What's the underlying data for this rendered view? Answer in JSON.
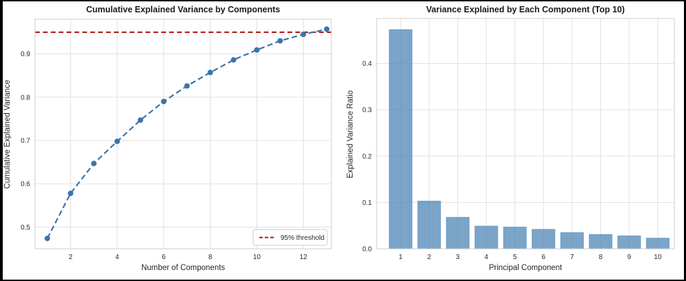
{
  "figure": {
    "background": "#ffffff",
    "frame_color": "#000000"
  },
  "style": {
    "grid_color": "#e0e0e0",
    "spine_color": "#cccccc",
    "text_color": "#262626",
    "title_color": "#1a1a1a"
  },
  "chart_data": [
    {
      "type": "line",
      "title": "Cumulative Explained Variance by Components",
      "xlabel": "Number of Components",
      "ylabel": "Cumulative Explained Variance",
      "x": [
        1,
        2,
        3,
        4,
        5,
        6,
        7,
        8,
        9,
        10,
        11,
        12,
        13
      ],
      "y": [
        0.474,
        0.578,
        0.647,
        0.698,
        0.747,
        0.79,
        0.826,
        0.857,
        0.886,
        0.909,
        0.93,
        0.945,
        0.957
      ],
      "line_color": "#3b74a9",
      "line_style": "dashed",
      "marker": "circle",
      "threshold": {
        "value": 0.95,
        "label": "95% threshold",
        "color": "#b01412",
        "style": "dashed"
      },
      "legend": {
        "position": "lower right",
        "entries": [
          "95% threshold"
        ]
      },
      "xlim": [
        0.47,
        13.2
      ],
      "ylim": [
        0.45,
        0.98
      ],
      "xticks": [
        2,
        4,
        6,
        8,
        10,
        12
      ],
      "yticks": [
        0.5,
        0.6,
        0.7,
        0.8,
        0.9
      ],
      "grid": true
    },
    {
      "type": "bar",
      "title": "Variance Explained by Each Component (Top 10)",
      "xlabel": "Principal Component",
      "ylabel": "Explained Variance Ratio",
      "categories": [
        1,
        2,
        3,
        4,
        5,
        6,
        7,
        8,
        9,
        10
      ],
      "values": [
        0.473,
        0.103,
        0.068,
        0.049,
        0.047,
        0.042,
        0.035,
        0.031,
        0.028,
        0.023
      ],
      "bar_color": "#4682b4",
      "bar_opacity": 0.72,
      "xlim": [
        0.16,
        10.58
      ],
      "ylim": [
        0,
        0.497
      ],
      "yticks": [
        0.0,
        0.1,
        0.2,
        0.3,
        0.4
      ],
      "grid": true
    }
  ]
}
